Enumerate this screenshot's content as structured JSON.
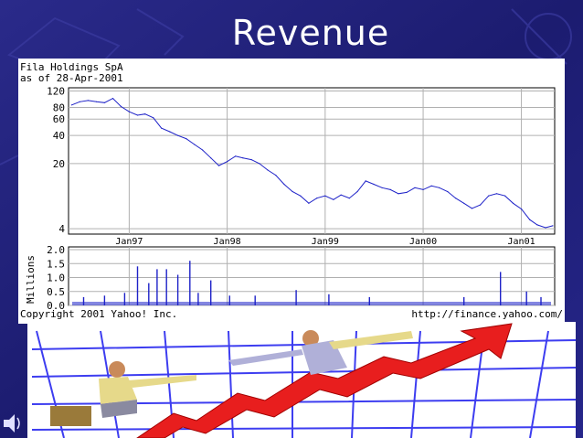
{
  "slide": {
    "title": "Revenue",
    "colors": {
      "background": "#1f1f78",
      "accent": "#ffffff"
    }
  },
  "chart_data": [
    {
      "type": "line",
      "header_lines": [
        "Fila Holdings SpA",
        "as of 28-Apr-2001"
      ],
      "x_tick_labels": [
        "Jan97",
        "Jan98",
        "Jan99",
        "Jan00",
        "Jan01"
      ],
      "y_scale": "log",
      "y_ticks": [
        4,
        20,
        40,
        60,
        80,
        120
      ],
      "ylim": [
        3.5,
        130
      ],
      "grid": true,
      "series": [
        {
          "color": "#1e22c8",
          "points": [
            [
              "1996-06-01",
              85
            ],
            [
              "1996-07-01",
              92
            ],
            [
              "1996-08-01",
              95
            ],
            [
              "1996-09-01",
              92
            ],
            [
              "1996-10-01",
              90
            ],
            [
              "1996-11-01",
              100
            ],
            [
              "1996-12-01",
              82
            ],
            [
              "1997-01-01",
              72
            ],
            [
              "1997-02-01",
              66
            ],
            [
              "1997-03-01",
              68
            ],
            [
              "1997-04-01",
              62
            ],
            [
              "1997-05-01",
              48
            ],
            [
              "1997-06-01",
              44
            ],
            [
              "1997-07-01",
              40
            ],
            [
              "1997-08-01",
              37
            ],
            [
              "1997-09-01",
              32
            ],
            [
              "1997-10-01",
              28
            ],
            [
              "1997-11-01",
              23
            ],
            [
              "1997-12-01",
              19
            ],
            [
              "1998-01-01",
              21
            ],
            [
              "1998-02-01",
              24
            ],
            [
              "1998-03-01",
              23
            ],
            [
              "1998-04-01",
              22
            ],
            [
              "1998-05-01",
              20
            ],
            [
              "1998-06-01",
              17
            ],
            [
              "1998-07-01",
              15
            ],
            [
              "1998-08-01",
              12
            ],
            [
              "1998-09-01",
              10
            ],
            [
              "1998-10-01",
              9
            ],
            [
              "1998-11-01",
              7.5
            ],
            [
              "1998-12-01",
              8.5
            ],
            [
              "1999-01-01",
              9
            ],
            [
              "1999-02-01",
              8.2
            ],
            [
              "1999-03-01",
              9.2
            ],
            [
              "1999-04-01",
              8.5
            ],
            [
              "1999-05-01",
              10
            ],
            [
              "1999-06-01",
              13
            ],
            [
              "1999-07-01",
              12
            ],
            [
              "1999-08-01",
              11
            ],
            [
              "1999-09-01",
              10.5
            ],
            [
              "1999-10-01",
              9.5
            ],
            [
              "1999-11-01",
              9.8
            ],
            [
              "1999-12-01",
              11
            ],
            [
              "2000-01-01",
              10.5
            ],
            [
              "2000-02-01",
              11.5
            ],
            [
              "2000-03-01",
              11
            ],
            [
              "2000-04-01",
              10
            ],
            [
              "2000-05-01",
              8.5
            ],
            [
              "2000-06-01",
              7.5
            ],
            [
              "2000-07-01",
              6.6
            ],
            [
              "2000-08-01",
              7.2
            ],
            [
              "2000-09-01",
              9
            ],
            [
              "2000-10-01",
              9.5
            ],
            [
              "2000-11-01",
              9
            ],
            [
              "2000-12-01",
              7.5
            ],
            [
              "2001-01-01",
              6.5
            ],
            [
              "2001-02-01",
              5
            ],
            [
              "2001-03-01",
              4.4
            ],
            [
              "2001-04-01",
              4.1
            ],
            [
              "2001-04-28",
              4.3
            ]
          ]
        }
      ]
    },
    {
      "type": "bar",
      "ylabel": "Millions",
      "y_ticks": [
        0.0,
        0.5,
        1.0,
        1.5,
        2.0
      ],
      "ylim": [
        0,
        2.1
      ],
      "grid": true,
      "series": [
        {
          "color": "#1e22c8",
          "points": [
            [
              "1996-07-15",
              0.3
            ],
            [
              "1996-10-01",
              0.35
            ],
            [
              "1996-12-15",
              0.45
            ],
            [
              "1997-02-01",
              1.4
            ],
            [
              "1997-03-15",
              0.8
            ],
            [
              "1997-04-15",
              1.3
            ],
            [
              "1997-05-20",
              1.3
            ],
            [
              "1997-07-01",
              1.1
            ],
            [
              "1997-08-15",
              1.6
            ],
            [
              "1997-09-15",
              0.45
            ],
            [
              "1997-11-01",
              0.9
            ],
            [
              "1998-01-10",
              0.35
            ],
            [
              "1998-04-15",
              0.35
            ],
            [
              "1998-09-15",
              0.55
            ],
            [
              "1999-01-15",
              0.4
            ],
            [
              "1999-06-15",
              0.3
            ],
            [
              "2000-06-01",
              0.3
            ],
            [
              "2000-10-15",
              1.2
            ],
            [
              "2001-01-20",
              0.5
            ],
            [
              "2001-03-15",
              0.3
            ]
          ]
        }
      ]
    }
  ],
  "footer": {
    "copyright": "Copyright 2001 Yahoo! Inc.",
    "source_url": "http://finance.yahoo.com/"
  }
}
